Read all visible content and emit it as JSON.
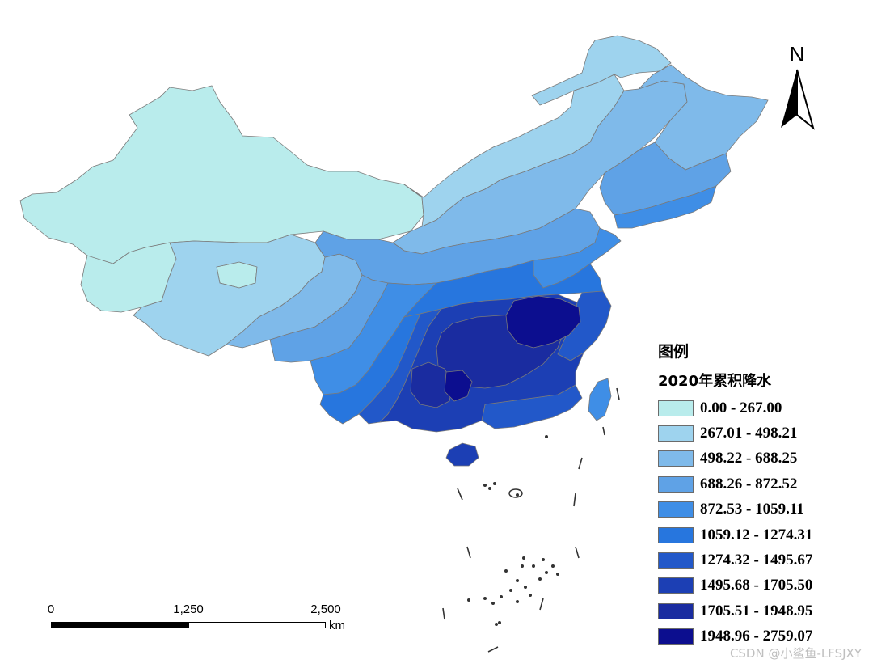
{
  "map": {
    "compass_letter": "N",
    "legend_title": "图例",
    "legend_subtitle": "2020年累积降水",
    "classes": [
      {
        "label": "0.00 - 267.00",
        "color": "#b9ecec"
      },
      {
        "label": "267.01 - 498.21",
        "color": "#9ed3ee"
      },
      {
        "label": "498.22 - 688.25",
        "color": "#7fbaea"
      },
      {
        "label": "688.26 - 872.52",
        "color": "#5fa2e6"
      },
      {
        "label": "872.53 - 1059.11",
        "color": "#3f8ee6"
      },
      {
        "label": "1059.12 - 1274.31",
        "color": "#2776de"
      },
      {
        "label": "1274.32 - 1495.67",
        "color": "#2258c9"
      },
      {
        "label": "1495.68 - 1705.50",
        "color": "#1c3fb4"
      },
      {
        "label": "1705.51 - 1948.95",
        "color": "#1a2ca0"
      },
      {
        "label": "1948.96 - 2759.07",
        "color": "#0c0e8f"
      }
    ],
    "scale": {
      "ticks": [
        "0",
        "1,250",
        "2,500"
      ],
      "unit": "km"
    },
    "watermark": "CSDN @小鲨鱼-LFSJXY",
    "border_color": "#7a7a7a",
    "island_color": "#333333"
  }
}
